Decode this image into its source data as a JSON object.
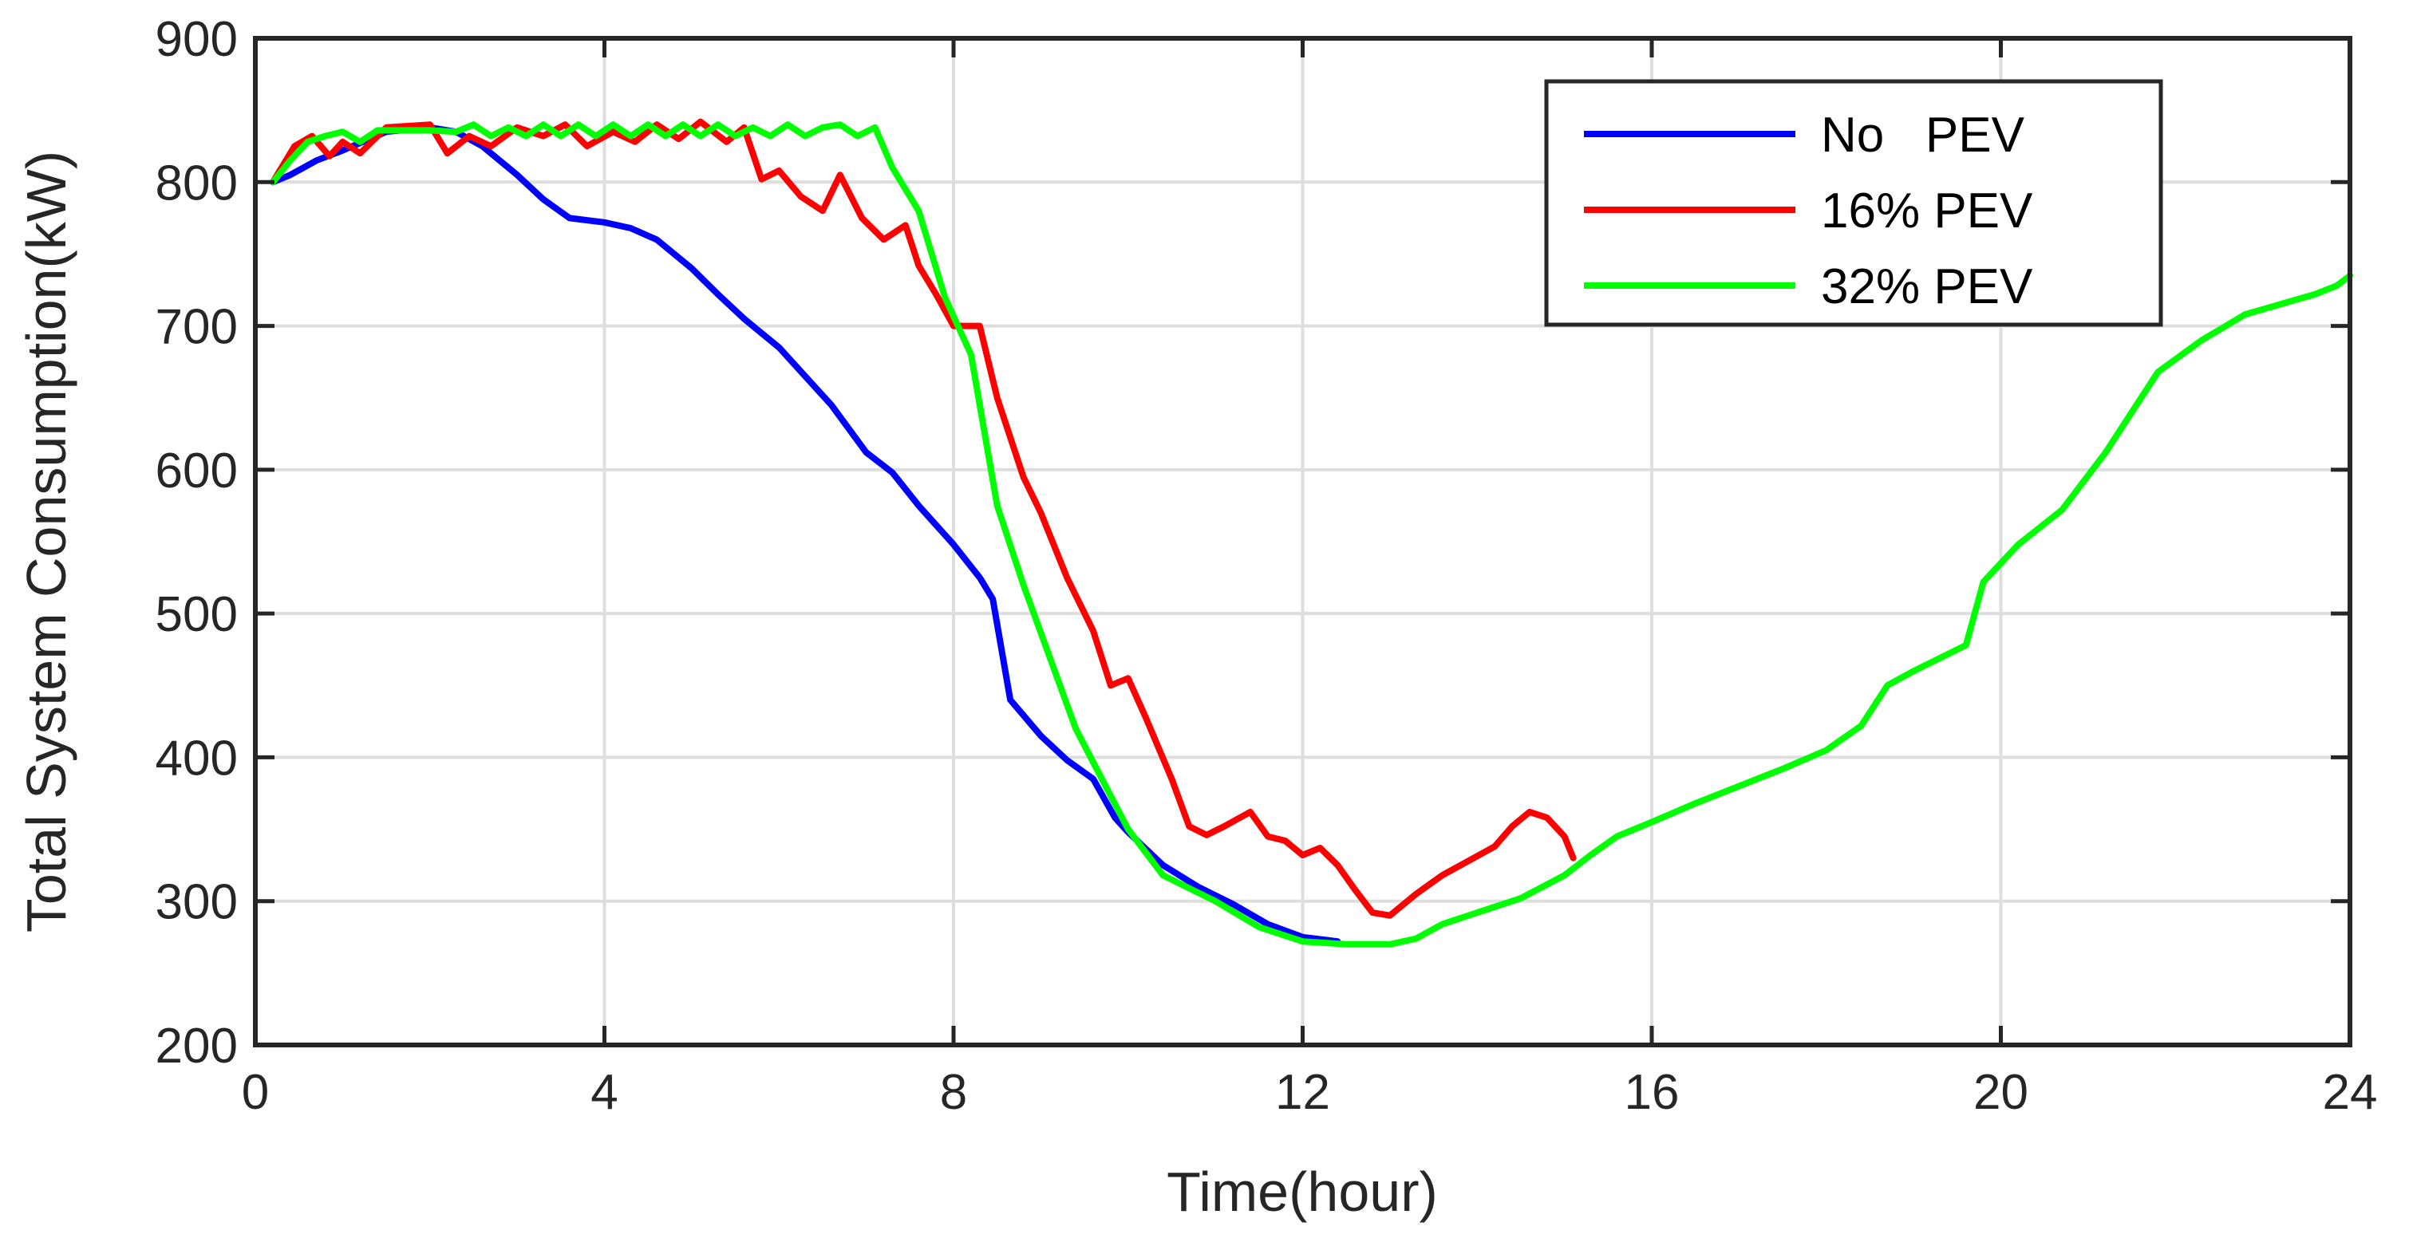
{
  "chart_data": {
    "type": "line",
    "title": "",
    "xlabel": "Time(hour)",
    "ylabel": "Total System Consumption(kW)",
    "xlim": [
      0,
      24
    ],
    "ylim": [
      200,
      900
    ],
    "xticks": [
      0,
      4,
      8,
      12,
      16,
      20,
      24
    ],
    "xtick_labels": [
      "0",
      "4",
      "8",
      "12",
      "16",
      "20",
      "24"
    ],
    "yticks": [
      200,
      300,
      400,
      500,
      600,
      700,
      800,
      900
    ],
    "ytick_labels": [
      "200",
      "300",
      "400",
      "500",
      "600",
      "700",
      "800",
      "900"
    ],
    "grid": true,
    "legend_position": "top-right",
    "series": [
      {
        "name": "No   PEV",
        "color": "#0000ff",
        "x": [
          0.2,
          0.4,
          0.7,
          1.0,
          1.5,
          2.0,
          2.3,
          2.6,
          3.0,
          3.3,
          3.6,
          4.0,
          4.3,
          4.6,
          5.0,
          5.3,
          5.6,
          6.0,
          6.3,
          6.6,
          7.0,
          7.3,
          7.6,
          8.0,
          8.3,
          8.45,
          8.65,
          9.0,
          9.3,
          9.6,
          9.85,
          10.0,
          10.4,
          10.8,
          11.2,
          11.6,
          12.0,
          12.4
        ],
        "y": [
          800,
          805,
          815,
          822,
          835,
          838,
          835,
          825,
          805,
          788,
          775,
          772,
          768,
          760,
          740,
          722,
          705,
          685,
          665,
          645,
          612,
          598,
          575,
          548,
          525,
          510,
          440,
          415,
          398,
          385,
          358,
          348,
          325,
          310,
          298,
          284,
          275,
          272
        ]
      },
      {
        "name": "16% PEV",
        "color": "#ff0000",
        "x": [
          0.2,
          0.45,
          0.65,
          0.85,
          1.0,
          1.2,
          1.5,
          2.0,
          2.2,
          2.45,
          2.7,
          3.0,
          3.3,
          3.55,
          3.8,
          4.1,
          4.35,
          4.6,
          4.85,
          5.1,
          5.4,
          5.6,
          5.8,
          6.0,
          6.25,
          6.5,
          6.7,
          6.95,
          7.2,
          7.45,
          7.6,
          7.8,
          8.0,
          8.3,
          8.5,
          8.8,
          9.0,
          9.3,
          9.6,
          9.8,
          10.0,
          10.2,
          10.5,
          10.7,
          10.9,
          11.1,
          11.4,
          11.6,
          11.8,
          12.0,
          12.2,
          12.4,
          12.6,
          12.8,
          13.0,
          13.3,
          13.6,
          13.9,
          14.2,
          14.4,
          14.6,
          14.8,
          15.0,
          15.1
        ],
        "y": [
          800,
          825,
          832,
          818,
          828,
          820,
          838,
          840,
          820,
          832,
          825,
          838,
          832,
          840,
          825,
          835,
          828,
          840,
          830,
          842,
          828,
          838,
          802,
          808,
          790,
          780,
          805,
          775,
          760,
          770,
          742,
          722,
          700,
          700,
          650,
          595,
          570,
          525,
          488,
          450,
          455,
          428,
          385,
          352,
          346,
          352,
          362,
          345,
          342,
          332,
          337,
          325,
          308,
          292,
          290,
          305,
          318,
          328,
          338,
          352,
          362,
          358,
          345,
          330
        ]
      },
      {
        "name": "32% PEV",
        "color": "#00ff00",
        "x": [
          0.2,
          0.4,
          0.6,
          0.8,
          1.0,
          1.2,
          1.4,
          2.0,
          2.3,
          2.5,
          2.7,
          2.9,
          3.1,
          3.3,
          3.5,
          3.7,
          3.9,
          4.1,
          4.3,
          4.5,
          4.7,
          4.9,
          5.1,
          5.3,
          5.5,
          5.7,
          5.9,
          6.1,
          6.3,
          6.5,
          6.7,
          6.9,
          7.1,
          7.3,
          7.6,
          7.9,
          8.2,
          8.5,
          8.8,
          9.1,
          9.4,
          9.7,
          10.0,
          10.4,
          11.0,
          11.5,
          12.0,
          12.5,
          13.0,
          13.3,
          13.6,
          14.0,
          14.5,
          15.0,
          15.3,
          15.6,
          16.0,
          16.5,
          17.0,
          17.5,
          18.0,
          18.4,
          18.7,
          19.0,
          19.6,
          19.8,
          20.2,
          20.7,
          21.2,
          21.8,
          22.3,
          22.8,
          23.2,
          23.6,
          23.85,
          24.0
        ],
        "y": [
          800,
          815,
          828,
          832,
          835,
          828,
          836,
          836,
          835,
          840,
          832,
          838,
          832,
          840,
          832,
          840,
          832,
          840,
          832,
          840,
          832,
          840,
          832,
          840,
          832,
          838,
          832,
          840,
          832,
          838,
          840,
          832,
          838,
          810,
          780,
          720,
          680,
          575,
          520,
          470,
          420,
          385,
          350,
          318,
          300,
          282,
          272,
          270,
          270,
          274,
          284,
          292,
          302,
          318,
          332,
          345,
          355,
          368,
          380,
          392,
          405,
          422,
          450,
          460,
          478,
          522,
          548,
          572,
          612,
          668,
          690,
          708,
          715,
          722,
          728,
          735
        ]
      }
    ]
  }
}
